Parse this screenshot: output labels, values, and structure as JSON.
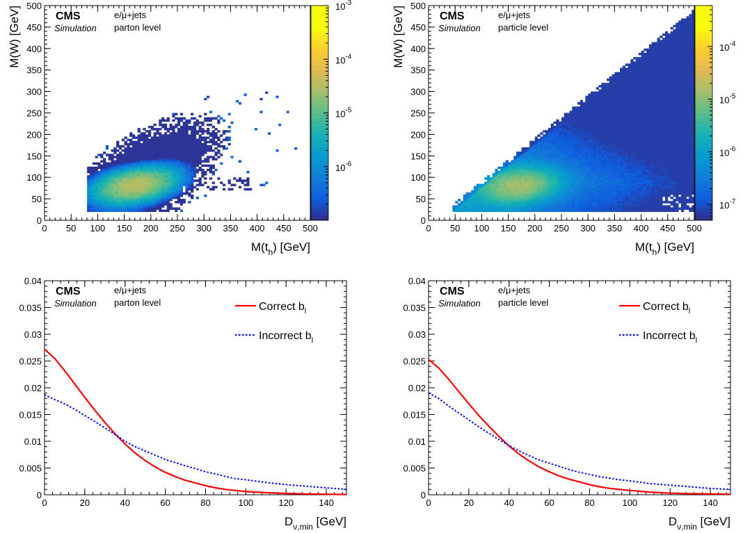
{
  "chart_data": [
    {
      "type": "heatmap",
      "experiment": "CMS",
      "label": "Simulation",
      "channel": "e/μ+jets",
      "level": "parton level",
      "xlabel": "M(t",
      "xlabel_sub": "h",
      "xlabel_unit": ") [GeV]",
      "ylabel": "M(W) [GeV]",
      "xlim": [
        0,
        500
      ],
      "ylim": [
        0,
        500
      ],
      "x_ticks": [
        "0",
        "50",
        "100",
        "150",
        "200",
        "250",
        "300",
        "350",
        "400",
        "450",
        "500"
      ],
      "y_ticks": [
        "0",
        "50",
        "100",
        "150",
        "200",
        "250",
        "300",
        "350",
        "400",
        "450",
        "500"
      ],
      "z_scale": "log",
      "z_ticks": [
        {
          "base": "10",
          "exp": "-3",
          "value": 0.001
        },
        {
          "base": "10",
          "exp": "-4",
          "value": 0.0001
        },
        {
          "base": "10",
          "exp": "-5",
          "value": 1e-05
        },
        {
          "base": "10",
          "exp": "-6",
          "value": 1e-06
        }
      ],
      "zlim": [
        1e-07,
        0.001
      ],
      "peak": {
        "x": 170,
        "y": 80
      },
      "support": "low-mass blob extending along diagonal, sparse tail to M(t_h)≈470"
    },
    {
      "type": "heatmap",
      "experiment": "CMS",
      "label": "Simulation",
      "channel": "e/μ+jets",
      "level": "particle level",
      "xlabel": "M(t",
      "xlabel_sub": "h",
      "xlabel_unit": ") [GeV]",
      "ylabel": "M(W) [GeV]",
      "xlim": [
        0,
        500
      ],
      "ylim": [
        0,
        500
      ],
      "x_ticks": [
        "0",
        "50",
        "100",
        "150",
        "200",
        "250",
        "300",
        "350",
        "400",
        "450",
        "500"
      ],
      "y_ticks": [
        "0",
        "50",
        "100",
        "150",
        "200",
        "250",
        "300",
        "350",
        "400",
        "450",
        "500"
      ],
      "z_scale": "log",
      "z_ticks": [
        {
          "base": "10",
          "exp": "-4",
          "value": 0.0001
        },
        {
          "base": "10",
          "exp": "-5",
          "value": 1e-05
        },
        {
          "base": "10",
          "exp": "-6",
          "value": 1e-06
        },
        {
          "base": "10",
          "exp": "-7",
          "value": 1e-07
        }
      ],
      "zlim": [
        5e-08,
        0.0006
      ],
      "peak": {
        "x": 170,
        "y": 80
      },
      "support": "triangle M(W) < M(t_h), M(W) > 20, M(t_h) > 50"
    },
    {
      "type": "line",
      "experiment": "CMS",
      "label": "Simulation",
      "channel": "e/μ+jets",
      "level": "parton level",
      "xlabel": "D",
      "xlabel_sub": "ν,min",
      "xlabel_unit": " [GeV]",
      "xlim": [
        0,
        150
      ],
      "ylim": [
        0,
        0.04
      ],
      "x_ticks": [
        "0",
        "20",
        "40",
        "60",
        "80",
        "100",
        "120",
        "140"
      ],
      "y_ticks": [
        "0",
        "0.005",
        "0.01",
        "0.015",
        "0.02",
        "0.025",
        "0.03",
        "0.035",
        "0.04"
      ],
      "legend_position": "top-right",
      "series": [
        {
          "name": "Correct b",
          "name_sub": "l",
          "color": "#ff0000",
          "style": "solid",
          "x": [
            0,
            5,
            10,
            15,
            20,
            25,
            30,
            35,
            40,
            45,
            50,
            55,
            60,
            65,
            70,
            75,
            80,
            85,
            90,
            95,
            100,
            110,
            120,
            130,
            140,
            150
          ],
          "y": [
            0.0272,
            0.0255,
            0.0232,
            0.0207,
            0.0182,
            0.0158,
            0.0135,
            0.0114,
            0.0095,
            0.0078,
            0.0064,
            0.0052,
            0.0042,
            0.0034,
            0.0027,
            0.0022,
            0.0017,
            0.0013,
            0.001,
            0.0008,
            0.0006,
            0.0004,
            0.00025,
            0.00015,
            0.0001,
            5e-05
          ]
        },
        {
          "name": "Incorrect b",
          "name_sub": "l",
          "color": "#0000ff",
          "style": "dotted",
          "x": [
            0,
            5,
            10,
            15,
            20,
            25,
            30,
            35,
            40,
            45,
            50,
            55,
            60,
            65,
            70,
            75,
            80,
            85,
            90,
            95,
            100,
            110,
            120,
            130,
            140,
            150
          ],
          "y": [
            0.0187,
            0.0178,
            0.017,
            0.016,
            0.0148,
            0.0137,
            0.0125,
            0.0113,
            0.01,
            0.009,
            0.0082,
            0.0074,
            0.0066,
            0.006,
            0.0054,
            0.0049,
            0.0043,
            0.0039,
            0.0034,
            0.003,
            0.0028,
            0.0023,
            0.0019,
            0.0016,
            0.0013,
            0.001
          ]
        }
      ]
    },
    {
      "type": "line",
      "experiment": "CMS",
      "label": "Simulation",
      "channel": "e/μ+jets",
      "level": "particle level",
      "xlabel": "D",
      "xlabel_sub": "ν,min",
      "xlabel_unit": " [GeV]",
      "xlim": [
        0,
        150
      ],
      "ylim": [
        0,
        0.04
      ],
      "x_ticks": [
        "0",
        "20",
        "40",
        "60",
        "80",
        "100",
        "120",
        "140"
      ],
      "y_ticks": [
        "0",
        "0.005",
        "0.01",
        "0.015",
        "0.02",
        "0.025",
        "0.03",
        "0.035",
        "0.04"
      ],
      "legend_position": "top-right",
      "series": [
        {
          "name": "Correct b",
          "name_sub": "l",
          "color": "#ff0000",
          "style": "solid",
          "x": [
            0,
            5,
            10,
            15,
            20,
            25,
            30,
            35,
            40,
            45,
            50,
            55,
            60,
            65,
            70,
            75,
            80,
            85,
            90,
            95,
            100,
            110,
            120,
            130,
            140,
            150
          ],
          "y": [
            0.0253,
            0.0237,
            0.0216,
            0.0193,
            0.017,
            0.0148,
            0.0128,
            0.0109,
            0.0091,
            0.0076,
            0.0063,
            0.0052,
            0.0043,
            0.0035,
            0.0029,
            0.0024,
            0.0019,
            0.0015,
            0.0012,
            0.001,
            0.0008,
            0.0005,
            0.0003,
            0.0002,
            0.00015,
            0.0001
          ]
        },
        {
          "name": "Incorrect b",
          "name_sub": "l",
          "color": "#0000ff",
          "style": "dotted",
          "x": [
            0,
            5,
            10,
            15,
            20,
            25,
            30,
            35,
            40,
            45,
            50,
            55,
            60,
            65,
            70,
            75,
            80,
            85,
            90,
            95,
            100,
            110,
            120,
            130,
            140,
            150
          ],
          "y": [
            0.019,
            0.018,
            0.0166,
            0.0153,
            0.014,
            0.0127,
            0.0115,
            0.0103,
            0.0092,
            0.0082,
            0.0073,
            0.0065,
            0.0059,
            0.0053,
            0.0047,
            0.0042,
            0.0038,
            0.0034,
            0.0031,
            0.0028,
            0.0026,
            0.0021,
            0.0018,
            0.0015,
            0.0012,
            0.001
          ]
        }
      ]
    }
  ]
}
